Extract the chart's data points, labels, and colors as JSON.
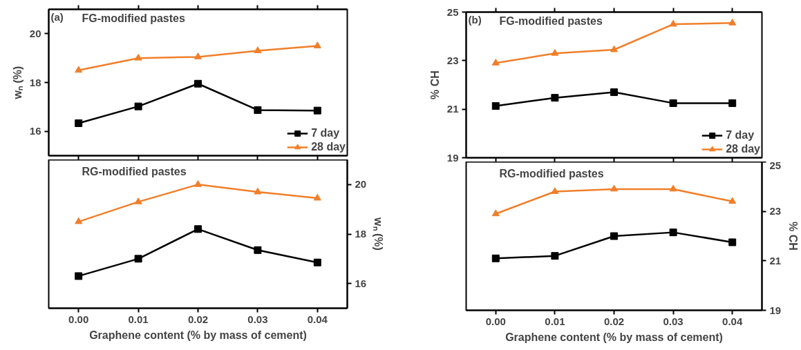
{
  "chart_data": [
    {
      "type": "line",
      "title": "FG-modified pastes",
      "annotations": [
        "(a)"
      ],
      "ylabel": "wₙ (%)",
      "x": [
        0.0,
        0.01,
        0.02,
        0.03,
        0.04
      ],
      "xlim": [
        -0.005,
        0.045
      ],
      "xticks": [
        {
          "value": 0.0,
          "label": null
        },
        {
          "value": 0.01,
          "label": null
        },
        {
          "value": 0.02,
          "label": null
        },
        {
          "value": 0.03,
          "label": null
        },
        {
          "value": 0.04,
          "label": null
        }
      ],
      "ylim": [
        15,
        21
      ],
      "yticks": [
        16,
        18,
        20
      ],
      "tick_labels": "y",
      "legend": "bottom right",
      "line_style": "solid",
      "grid": false,
      "series": [
        {
          "name": "7 day",
          "color": "#000000",
          "marker": "square",
          "values": [
            16.33,
            17.02,
            17.95,
            16.87,
            16.85
          ]
        },
        {
          "name": "28 day",
          "color": "#f07f2a",
          "marker": "triangle",
          "values": [
            18.5,
            19.0,
            19.05,
            19.3,
            19.5
          ]
        }
      ]
    },
    {
      "type": "line",
      "title": "RG-modified pastes",
      "xlabel": "Graphene content (% by mass of cement)",
      "y2label": "wₙ (%)",
      "x": [
        0.0,
        0.01,
        0.02,
        0.03,
        0.04
      ],
      "xlim": [
        -0.005,
        0.045
      ],
      "xticks": [
        {
          "value": 0.0,
          "label": "0.00"
        },
        {
          "value": 0.01,
          "label": "0.01"
        },
        {
          "value": 0.02,
          "label": "0.02"
        },
        {
          "value": 0.03,
          "label": "0.03"
        },
        {
          "value": 0.04,
          "label": "0.04"
        }
      ],
      "y2lim": [
        15,
        21
      ],
      "y2ticks": [
        16,
        18,
        20
      ],
      "line_style": "solid",
      "grid": false,
      "series": [
        {
          "color": "#000000",
          "marker": "square",
          "axis": "y2",
          "values": [
            16.3,
            17.0,
            18.2,
            17.35,
            16.85
          ]
        },
        {
          "color": "#f07f2a",
          "marker": "triangle",
          "axis": "y2",
          "values": [
            18.5,
            19.3,
            20.0,
            19.7,
            19.45
          ]
        }
      ]
    },
    {
      "type": "line",
      "title": "FG-modified pastes",
      "annotations": [
        "(b)"
      ],
      "ylabel": "% CH",
      "x": [
        0.0,
        0.01,
        0.02,
        0.03,
        0.04
      ],
      "xlim": [
        -0.005,
        0.045
      ],
      "xticks": [
        {
          "value": 0.0,
          "label": null
        },
        {
          "value": 0.01,
          "label": null
        },
        {
          "value": 0.02,
          "label": null
        },
        {
          "value": 0.03,
          "label": null
        },
        {
          "value": 0.04,
          "label": null
        }
      ],
      "ylim": [
        19,
        25
      ],
      "yticks": [
        19,
        21,
        23,
        25
      ],
      "tick_labels": "y",
      "legend": "bottom right",
      "line_style": "solid",
      "grid": false,
      "series": [
        {
          "name": "7 day",
          "color": "#000000",
          "marker": "square",
          "values": [
            21.13,
            21.47,
            21.7,
            21.25,
            21.25
          ]
        },
        {
          "name": "28 day",
          "color": "#f07f2a",
          "marker": "triangle",
          "values": [
            22.9,
            23.3,
            23.45,
            24.5,
            24.55
          ]
        }
      ]
    },
    {
      "type": "line",
      "title": "RG-modified pastes",
      "xlabel": "Graphene content (% by mass of cement)",
      "y2label": "% CH",
      "x": [
        0.0,
        0.01,
        0.02,
        0.03,
        0.04
      ],
      "xlim": [
        -0.005,
        0.045
      ],
      "xticks": [
        {
          "value": 0.0,
          "label": "0.00"
        },
        {
          "value": 0.01,
          "label": "0.01"
        },
        {
          "value": 0.02,
          "label": "0.02"
        },
        {
          "value": 0.03,
          "label": "0.03"
        },
        {
          "value": 0.04,
          "label": "0.04"
        }
      ],
      "y2lim": [
        19,
        25
      ],
      "y2ticks": [
        19,
        21,
        23,
        25
      ],
      "line_style": "solid",
      "grid": false,
      "series": [
        {
          "color": "#000000",
          "marker": "square",
          "axis": "y2",
          "values": [
            21.1,
            21.2,
            22.0,
            22.15,
            21.75
          ]
        },
        {
          "color": "#f07f2a",
          "marker": "triangle",
          "axis": "y2",
          "values": [
            22.9,
            23.8,
            23.9,
            23.9,
            23.4
          ]
        }
      ]
    }
  ]
}
